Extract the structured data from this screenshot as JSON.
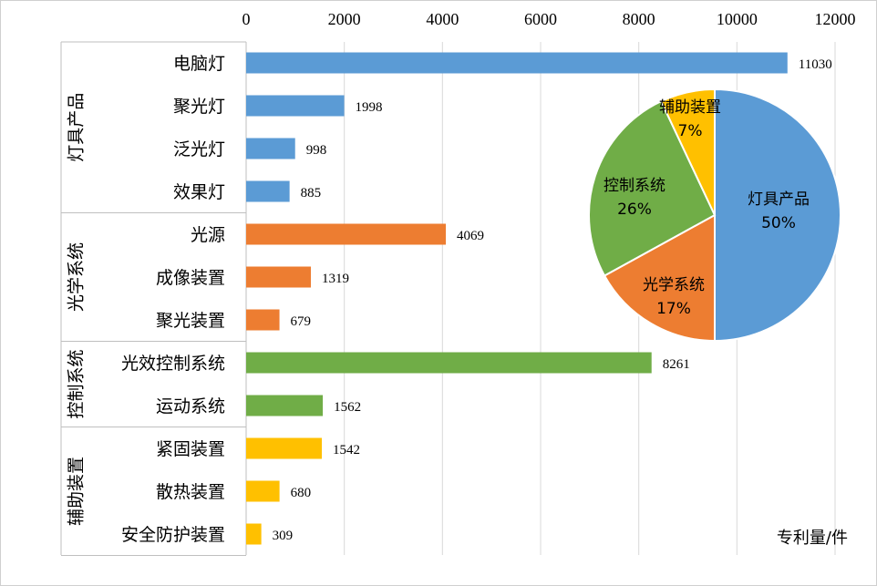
{
  "colors": {
    "灯具产品": "#5B9BD5",
    "光学系统": "#ED7D31",
    "控制系统": "#70AD47",
    "辅助装置": "#FFC000",
    "grid": "#d9d9d9",
    "frame": "#bfbfbf"
  },
  "chart_data": [
    {
      "type": "bar",
      "orientation": "horizontal",
      "xlim": [
        0,
        12000
      ],
      "x_ticks": [
        "0",
        "2000",
        "4000",
        "6000",
        "8000",
        "10000",
        "12000"
      ],
      "unit_label": "专利量/件",
      "grid": true,
      "groups": [
        {
          "name": "灯具产品",
          "items": [
            {
              "label": "电脑灯",
              "value": 11030
            },
            {
              "label": "聚光灯",
              "value": 1998
            },
            {
              "label": "泛光灯",
              "value": 998
            },
            {
              "label": "效果灯",
              "value": 885
            }
          ]
        },
        {
          "name": "光学系统",
          "items": [
            {
              "label": "光源",
              "value": 4069
            },
            {
              "label": "成像装置",
              "value": 1319
            },
            {
              "label": "聚光装置",
              "value": 679
            }
          ]
        },
        {
          "name": "控制系统",
          "items": [
            {
              "label": "光效控制系统",
              "value": 8261
            },
            {
              "label": "运动系统",
              "value": 1562
            }
          ]
        },
        {
          "name": "辅助装置",
          "items": [
            {
              "label": "紧固装置",
              "value": 1542
            },
            {
              "label": "散热装置",
              "value": 680
            },
            {
              "label": "安全防护装置",
              "value": 309
            }
          ]
        }
      ]
    },
    {
      "type": "pie",
      "slices": [
        {
          "label": "灯具产品",
          "percent": "50%",
          "value": 50
        },
        {
          "label": "光学系统",
          "percent": "17%",
          "value": 17
        },
        {
          "label": "控制系统",
          "percent": "26%",
          "value": 26
        },
        {
          "label": "辅助装置",
          "percent": "7%",
          "value": 7
        }
      ]
    }
  ]
}
